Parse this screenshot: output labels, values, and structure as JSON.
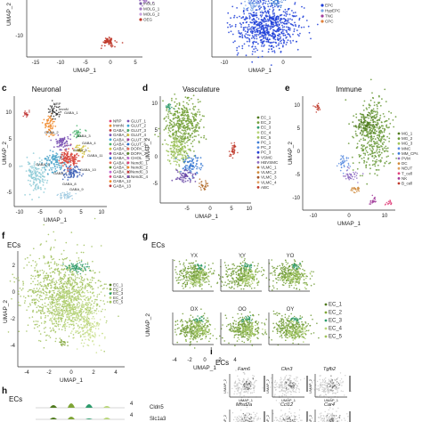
{
  "figure": {
    "panels": {
      "a": {
        "ytick": "-10",
        "yaxis": "UMAP_2",
        "xaxis": "UMAP_1",
        "xticks": [
          "-15",
          "-10",
          "-5",
          "0",
          "5"
        ],
        "legend": [
          "mOLG",
          "MOLG_1",
          "MOLG_2",
          "OEG"
        ]
      },
      "b": {
        "xaxis": "UMAP_1",
        "xticks": [
          "-10",
          "0"
        ],
        "legend": [
          "EPC",
          "HypEPC",
          "TNC",
          "CPC"
        ]
      },
      "c": {
        "label": "c",
        "title": "Neuronal",
        "xaxis": "UMAP_1",
        "yaxis": "UMAP_2",
        "xticks": [
          "-10",
          "-5",
          "0",
          "5",
          "10"
        ],
        "yticks": [
          "10",
          "5",
          "0",
          "-5"
        ],
        "legend": [
          "NRP",
          "ImmN",
          "GABA_1",
          "GABA_2",
          "GABA_3",
          "GABA_4",
          "GABA_5",
          "GABA_6",
          "GABA_7",
          "GABA_8",
          "GABA_9",
          "GABA_10",
          "GABA_11",
          "GABA_12",
          "GABA_13",
          "GLUT_1",
          "GLUT_2",
          "GLUT_3",
          "GLUT_4",
          "GLUT_5",
          "GLUT_6",
          "DOPA_1",
          "DOPA_2",
          "CHOL",
          "NendC_1",
          "NendC_2",
          "NendC_3",
          "NendC_4"
        ]
      },
      "d": {
        "label": "d",
        "title": "Vasculature",
        "xaxis": "UMAP_1",
        "yaxis": "UMAP_2",
        "xticks": [
          "-5",
          "0",
          "5",
          "10"
        ],
        "yticks": [
          "10",
          "5",
          "0",
          "-5"
        ],
        "legend": [
          "EC_1",
          "EC_2",
          "EC_3",
          "EC_4",
          "EC_5",
          "PC_1",
          "PC_2",
          "PC_3",
          "VSMC",
          "HBVSMC",
          "VLMC_1",
          "VLMC_2",
          "VLMC_3",
          "VLMC_4",
          "ABC"
        ]
      },
      "e": {
        "label": "e",
        "title": "Immune",
        "xaxis": "UMAP_1",
        "yaxis": "UMAP_2",
        "xticks": [
          "-10",
          "0",
          "10"
        ],
        "yticks": [
          "10",
          "5",
          "0",
          "-5",
          "-10"
        ],
        "legend": [
          "MG_1",
          "MG_2",
          "MG_3",
          "MNC",
          "MM_CPs",
          "PVM",
          "DC",
          "NEUT",
          "T_cell",
          "NK",
          "B_cell"
        ]
      },
      "f": {
        "label": "f",
        "title": "ECs",
        "xaxis": "UMAP_1",
        "yaxis": "UMAP_2",
        "xticks": [
          "-4",
          "-2",
          "0",
          "2",
          "4"
        ],
        "yticks": [
          "2",
          "0",
          "-2",
          "-4"
        ],
        "legend": [
          "EC_1",
          "EC_2",
          "EC_3",
          "EC_4",
          "EC_5"
        ]
      },
      "g": {
        "label": "g",
        "title": "ECs",
        "xaxis": "UMAP_1",
        "yaxis": "UMAP_2",
        "xticks": [
          "-4",
          "-2",
          "0",
          "2",
          "4"
        ],
        "groups": [
          "YX",
          "YY",
          "YO",
          "OX",
          "OO",
          "OY"
        ],
        "legend": [
          "EC_1",
          "EC_2",
          "EC_3",
          "EC_4",
          "EC_5"
        ]
      },
      "h": {
        "label": "h",
        "title": "ECs",
        "genes": [
          "Cldn5",
          "Slc1a3",
          "Lrg1"
        ],
        "scale": [
          "4",
          "4",
          "4"
        ]
      },
      "i": {
        "label": "i",
        "title": "ECs",
        "genes": [
          "Fam6",
          "Ckn3",
          "Tgfb2",
          "Mfsd2a",
          "Ccl12",
          "Car4"
        ],
        "yaxis": "UMAP_2",
        "xaxis": "UMAP_1"
      }
    }
  },
  "colors": {
    "ec1": "#4f7a1e",
    "ec2": "#7fa536",
    "ec3": "#2e9b6c",
    "ec4": "#b9d67a",
    "ec5": "#9fc45a",
    "blue": "#1f3fd8",
    "red": "#c0392b"
  }
}
